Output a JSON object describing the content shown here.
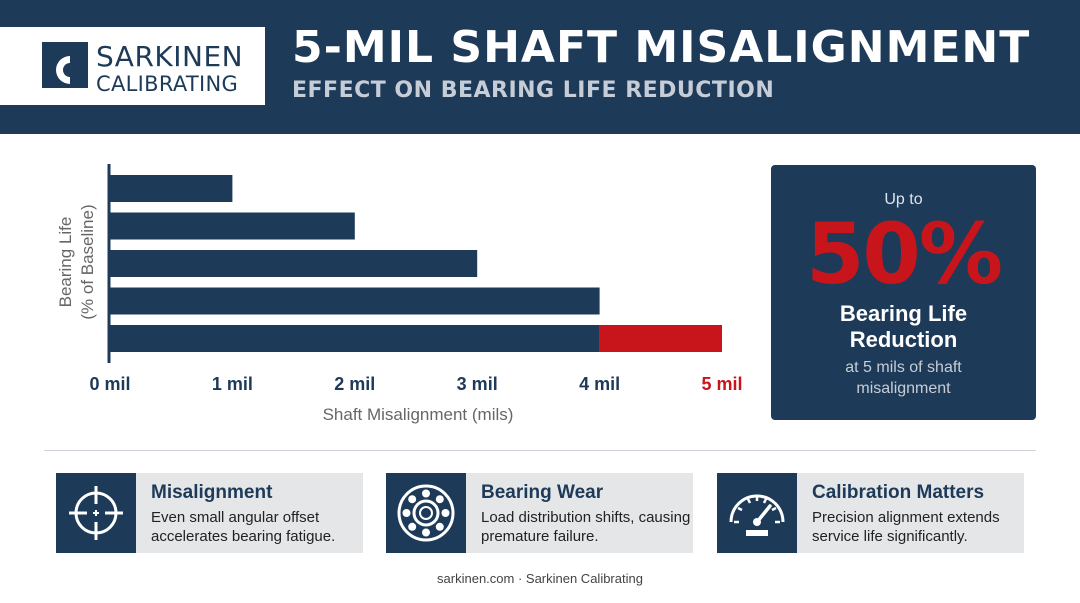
{
  "header": {
    "logo_line1": "SARKINEN",
    "logo_line2": "CALIBRATING",
    "title": "5-MIL SHAFT MISALIGNMENT",
    "subtitle": "EFFECT ON BEARING LIFE REDUCTION"
  },
  "colors": {
    "navy": "#1d3a58",
    "red": "#c8151b",
    "axis": "#1d3a58"
  },
  "chart_data": {
    "type": "bar",
    "orientation": "horizontal",
    "xlabel": "Shaft Misalignment (mils)",
    "ylabel": "Bearing Life\n(% of Baseline)",
    "ticks": [
      "0 mil",
      "1 mil",
      "2 mil",
      "3 mil",
      "4 mil",
      "5 mil"
    ],
    "highlight_tick": "5 mil",
    "xlim": [
      0,
      5
    ],
    "grid": false,
    "bars": [
      {
        "value": 1,
        "highlight": 0
      },
      {
        "value": 2,
        "highlight": 0
      },
      {
        "value": 3,
        "highlight": 0
      },
      {
        "value": 4,
        "highlight": 0
      },
      {
        "value": 4,
        "highlight": 1
      }
    ]
  },
  "stat": {
    "prefix": "Up to",
    "value": "50%",
    "label_line1": "Bearing Life",
    "label_line2": "Reduction",
    "sub": "at 5 mils of shaft misalignment"
  },
  "cards": [
    {
      "icon": "crosshair-icon",
      "title": "Misalignment",
      "text": "Even small angular offset accelerates bearing fatigue."
    },
    {
      "icon": "bearing-icon",
      "title": "Bearing Wear",
      "text": "Load distribution shifts, causing premature failure."
    },
    {
      "icon": "gauge-icon",
      "title": "Calibration Matters",
      "text": "Precision alignment extends service life significantly."
    }
  ],
  "footer": "sarkinen.com · Sarkinen Calibrating"
}
